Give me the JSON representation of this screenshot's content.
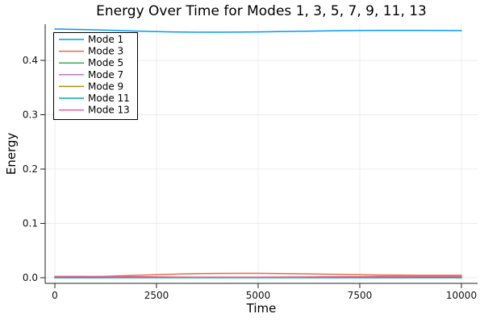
{
  "chart_data": {
    "type": "line",
    "title": "Energy Over Time for Modes 1, 3, 5, 7, 9, 11, 13",
    "xlabel": "Time",
    "ylabel": "Energy",
    "xlim": [
      0,
      10000
    ],
    "ylim": [
      -0.01,
      0.467
    ],
    "grid": true,
    "legend_position": "top-left",
    "x_ticks": {
      "values": [
        0,
        2500,
        5000,
        7500,
        10000
      ],
      "labels": [
        "0",
        "2500",
        "5000",
        "7500",
        "10000"
      ]
    },
    "y_ticks": {
      "values": [
        0,
        0.1,
        0.2,
        0.3,
        0.4
      ],
      "labels": [
        "0.0",
        "0.1",
        "0.2",
        "0.3",
        "0.4"
      ]
    },
    "x": [
      0,
      500,
      1000,
      1500,
      2000,
      2500,
      3000,
      3500,
      4000,
      4500,
      5000,
      5500,
      6000,
      6500,
      7000,
      7500,
      8000,
      8500,
      9000,
      9500,
      10000
    ],
    "series": [
      {
        "name": "Mode 1",
        "color": "#009AFA",
        "values": [
          0.4578,
          0.4571,
          0.4562,
          0.4551,
          0.454,
          0.453,
          0.4523,
          0.4519,
          0.4518,
          0.452,
          0.4524,
          0.4529,
          0.4535,
          0.4541,
          0.4546,
          0.455,
          0.4552,
          0.4553,
          0.4552,
          0.455,
          0.4548
        ]
      },
      {
        "name": "Mode 3",
        "color": "#E36F47",
        "values": [
          0.0008,
          0.0013,
          0.0021,
          0.0032,
          0.0044,
          0.0056,
          0.0067,
          0.0075,
          0.008,
          0.0082,
          0.0081,
          0.0077,
          0.0072,
          0.0066,
          0.006,
          0.0055,
          0.005,
          0.0047,
          0.0045,
          0.0044,
          0.0044
        ]
      },
      {
        "name": "Mode 5",
        "color": "#3EA44E",
        "values": [
          0.0003,
          0.0003,
          0.0004,
          0.0004,
          0.0005,
          0.0005,
          0.0005,
          0.0005,
          0.0005,
          0.0005,
          0.0005,
          0.0005,
          0.0004,
          0.0004,
          0.0004,
          0.0003,
          0.0003,
          0.0003,
          0.0003,
          0.0003,
          0.0003
        ]
      },
      {
        "name": "Mode 7",
        "color": "#C371D2",
        "values": [
          0.0002,
          0.0002,
          0.0002,
          0.0003,
          0.0003,
          0.0003,
          0.0003,
          0.0003,
          0.0003,
          0.0003,
          0.0003,
          0.0003,
          0.0003,
          0.0002,
          0.0002,
          0.0002,
          0.0002,
          0.0002,
          0.0002,
          0.0002,
          0.0002
        ]
      },
      {
        "name": "Mode 9",
        "color": "#AC8E18",
        "values": [
          0.0001,
          0.0001,
          0.0002,
          0.0002,
          0.0002,
          0.0002,
          0.0002,
          0.0002,
          0.0002,
          0.0002,
          0.0002,
          0.0002,
          0.0002,
          0.0002,
          0.0002,
          0.0001,
          0.0001,
          0.0001,
          0.0001,
          0.0001,
          0.0001
        ]
      },
      {
        "name": "Mode 11",
        "color": "#00AAAE",
        "values": [
          0.0001,
          0.0001,
          0.0001,
          0.0001,
          0.0001,
          0.0001,
          0.0001,
          0.0001,
          0.0001,
          0.0001,
          0.0001,
          0.0001,
          0.0001,
          0.0001,
          0.0001,
          0.0001,
          0.0001,
          0.0001,
          0.0001,
          0.0001,
          0.0001
        ]
      },
      {
        "name": "Mode 13",
        "color": "#ED5E93",
        "values": [
          0.0026,
          0.0025,
          0.0023,
          0.0021,
          0.0018,
          0.0016,
          0.0014,
          0.0012,
          0.0011,
          0.0011,
          0.0012,
          0.0013,
          0.0015,
          0.0017,
          0.0019,
          0.0021,
          0.0023,
          0.0024,
          0.0025,
          0.0026,
          0.0026
        ]
      }
    ]
  }
}
